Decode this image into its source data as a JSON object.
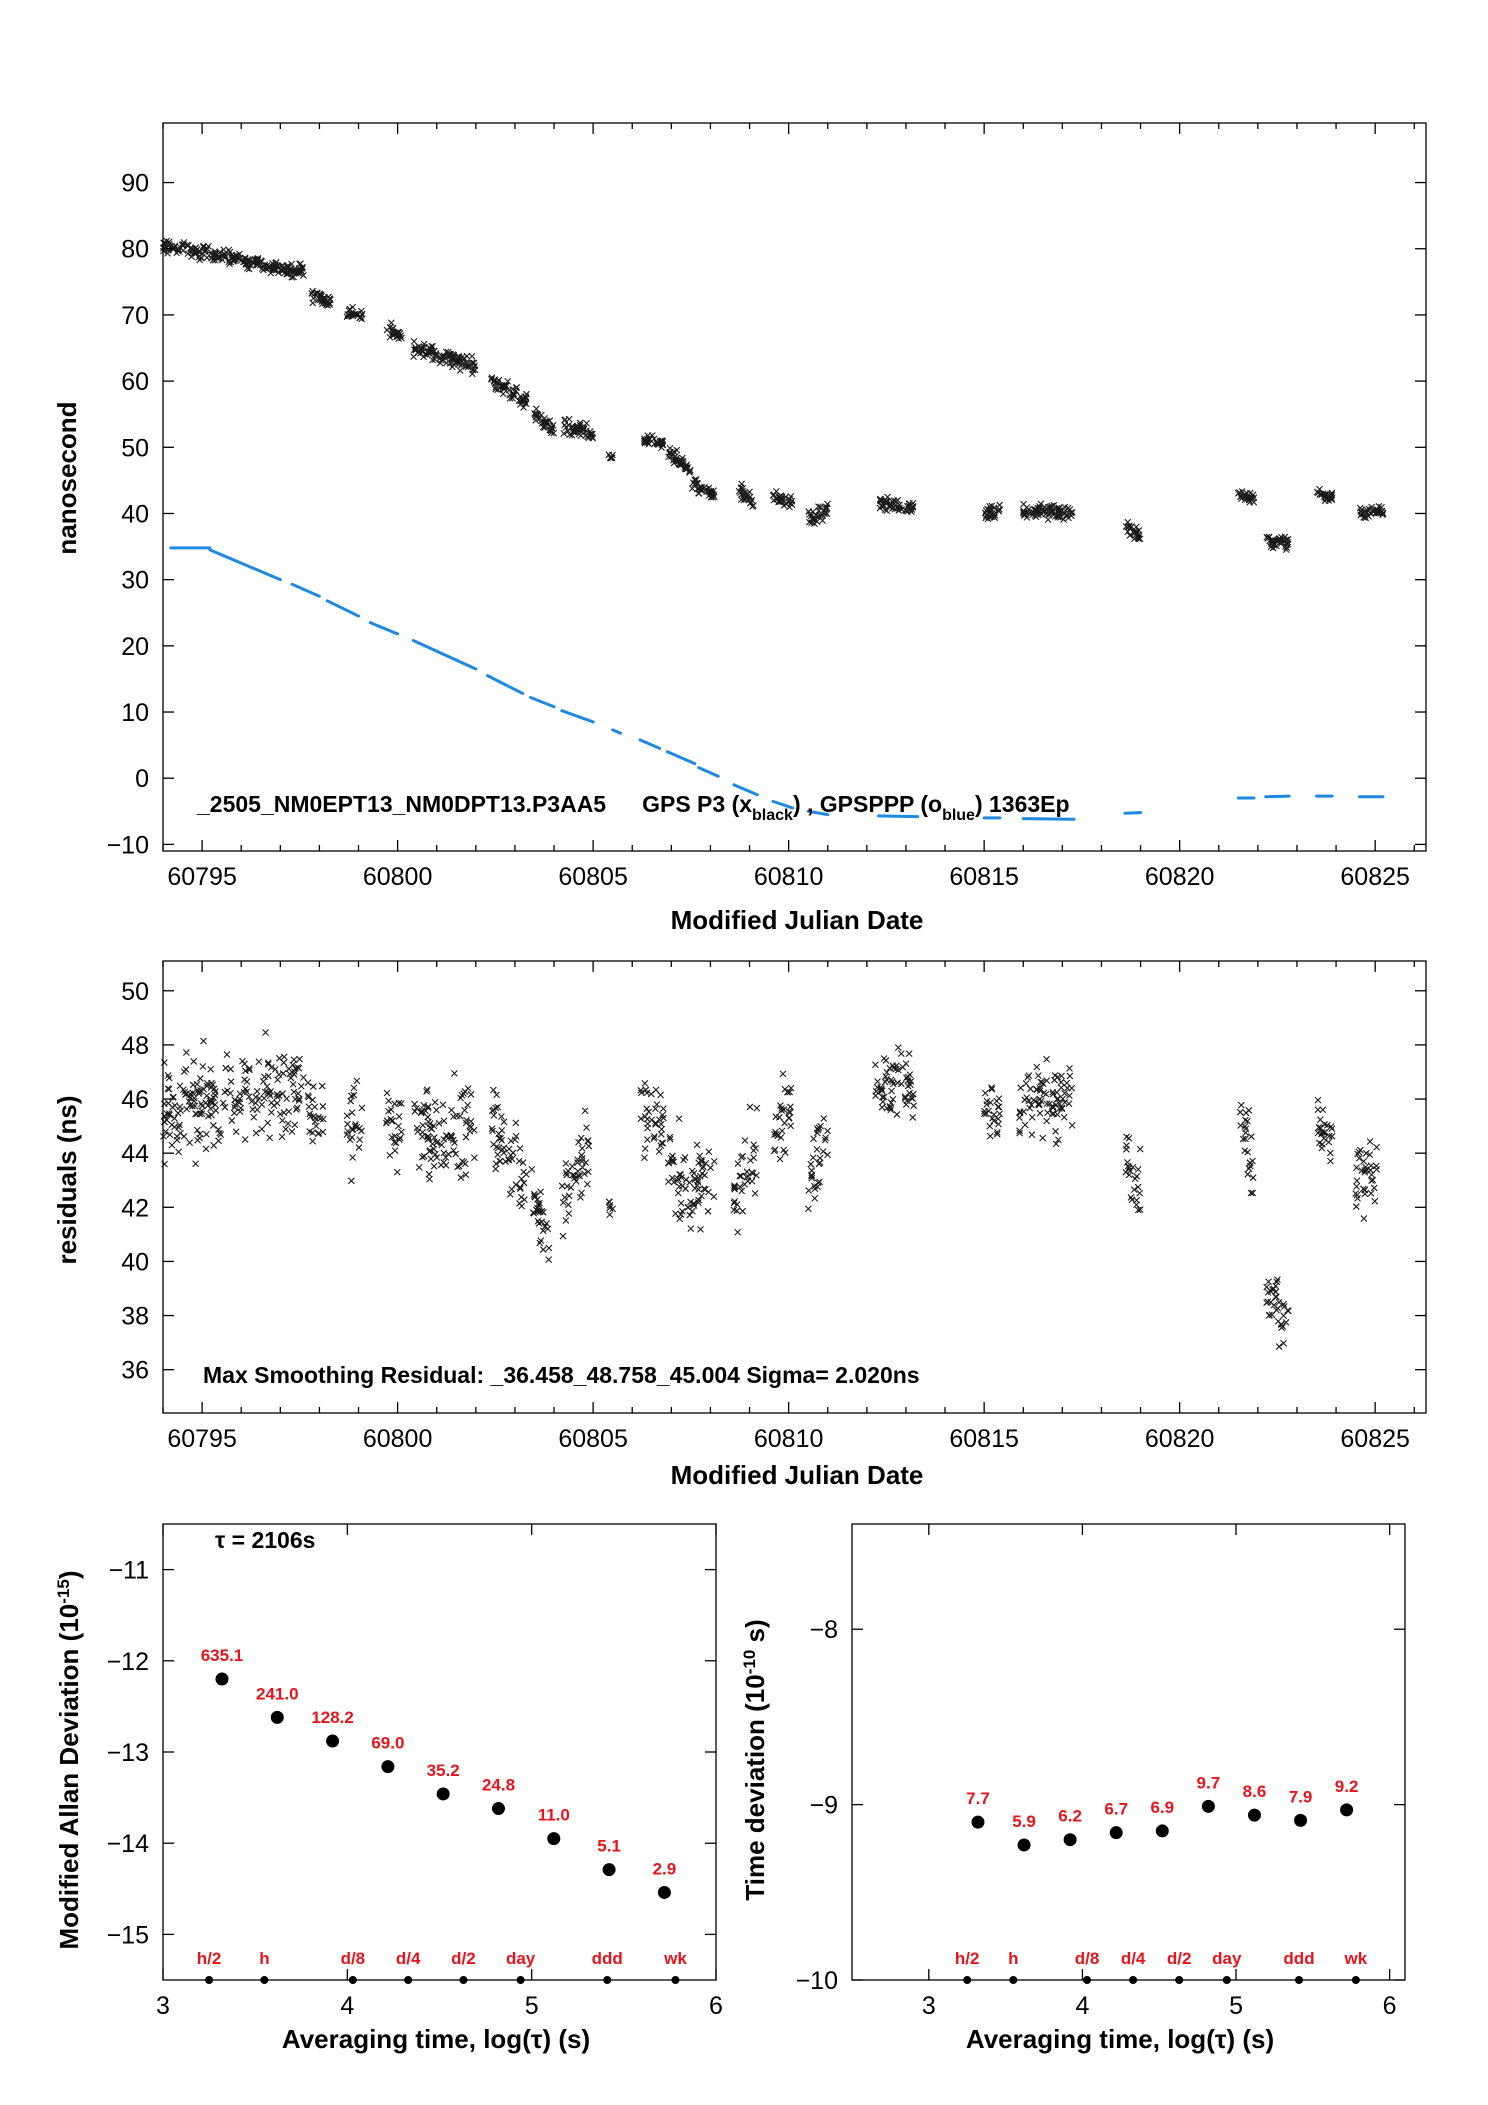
{
  "chart_data": [
    {
      "type": "scatter",
      "xlabel": "Modified Julian Date",
      "ylabel": "nanosecond",
      "xlim": [
        60794,
        60826.3
      ],
      "ylim": [
        -11,
        99
      ],
      "xticks": [
        60795,
        60800,
        60805,
        60810,
        60815,
        60820,
        60825
      ],
      "yticks": [
        -10,
        0,
        10,
        20,
        30,
        40,
        50,
        60,
        70,
        80,
        90
      ],
      "annotation": {
        "prefix": "_2505_NM0EPT13_NM0DPT13.P3AA5",
        "gps": "GPS P3 (x",
        "gps_sub": "black",
        "mid": ") ,  GPSPPP (o",
        "ppp_sub": "blue",
        "suffix": ")  1363Ep"
      },
      "colors": {
        "gps": "#000000",
        "ppp": "#1f88e0"
      },
      "series": [
        {
          "marker": "x",
          "segments": [
            [
              60794.0,
              60797.6,
              80.5,
              76.5,
              1.0
            ],
            [
              60797.8,
              60798.3,
              73.0,
              72.0,
              1.0
            ],
            [
              60798.7,
              60799.1,
              70.5,
              70.0,
              1.0
            ],
            [
              60799.7,
              60800.1,
              68.0,
              66.5,
              1.0
            ],
            [
              60800.4,
              60802.0,
              65.0,
              62.5,
              1.2
            ],
            [
              60802.4,
              60803.3,
              60.0,
              57.0,
              1.2
            ],
            [
              60803.5,
              60804.0,
              55.0,
              52.5,
              1.0
            ],
            [
              60804.2,
              60805.0,
              53.0,
              52.0,
              1.2
            ],
            [
              60805.4,
              60805.5,
              48.5,
              48.5,
              0.5
            ],
            [
              60806.3,
              60806.8,
              51.0,
              50.5,
              0.8
            ],
            [
              60806.9,
              60807.5,
              49.5,
              46.5,
              1.0
            ],
            [
              60807.5,
              60808.1,
              44.5,
              43.0,
              1.0
            ],
            [
              60808.7,
              60809.1,
              43.5,
              42.0,
              1.2
            ],
            [
              60809.6,
              60810.1,
              42.5,
              41.5,
              1.0
            ],
            [
              60810.5,
              60811.0,
              39.0,
              40.5,
              1.0
            ],
            [
              60812.3,
              60813.2,
              41.5,
              41.0,
              1.0
            ],
            [
              60815.0,
              60815.4,
              40.0,
              40.5,
              1.0
            ],
            [
              60816.0,
              60817.3,
              40.5,
              40.0,
              1.0
            ],
            [
              60818.6,
              60819.0,
              38.0,
              37.0,
              1.2
            ],
            [
              60821.5,
              60821.9,
              43.0,
              42.0,
              1.0
            ],
            [
              60822.2,
              60822.8,
              36.0,
              35.5,
              1.2
            ],
            [
              60823.5,
              60823.9,
              43.0,
              42.5,
              0.8
            ],
            [
              60824.6,
              60825.2,
              40.0,
              40.5,
              1.0
            ]
          ]
        },
        {
          "marker": "o",
          "segments": [
            [
              60794.2,
              60795.2,
              34.8,
              34.8
            ],
            [
              60795.2,
              60797.0,
              34.5,
              30.0
            ],
            [
              60797.3,
              60798.0,
              29.3,
              27.5
            ],
            [
              60798.2,
              60799.0,
              26.8,
              24.5
            ],
            [
              60799.3,
              60800.0,
              23.5,
              21.8
            ],
            [
              60800.4,
              60802.0,
              20.8,
              16.5
            ],
            [
              60802.3,
              60803.2,
              15.5,
              12.8
            ],
            [
              60803.4,
              60804.0,
              12.2,
              10.8
            ],
            [
              60804.2,
              60805.0,
              10.2,
              8.5
            ],
            [
              60805.5,
              60805.7,
              7.3,
              6.8
            ],
            [
              60806.2,
              60806.7,
              5.8,
              4.5
            ],
            [
              60806.9,
              60807.6,
              4.0,
              2.2
            ],
            [
              60807.7,
              60808.2,
              1.6,
              0.3
            ],
            [
              60808.6,
              60809.2,
              -1.0,
              -2.5
            ],
            [
              60809.6,
              60810.1,
              -3.5,
              -4.5
            ],
            [
              60810.5,
              60811.0,
              -5.0,
              -5.5
            ],
            [
              60812.3,
              60813.3,
              -5.7,
              -5.8
            ],
            [
              60815.0,
              60815.4,
              -6.0,
              -6.0
            ],
            [
              60816.0,
              60817.3,
              -6.1,
              -6.2
            ],
            [
              60818.6,
              60819.0,
              -5.3,
              -5.2
            ],
            [
              60821.5,
              60821.9,
              -3.0,
              -3.0
            ],
            [
              60822.2,
              60822.8,
              -2.8,
              -2.7
            ],
            [
              60823.5,
              60823.9,
              -2.7,
              -2.7
            ],
            [
              60824.6,
              60825.2,
              -2.8,
              -2.8
            ]
          ]
        }
      ]
    },
    {
      "type": "scatter",
      "xlabel": "Modified Julian Date",
      "ylabel": "residuals (ns)",
      "xlim": [
        60794,
        60826.3
      ],
      "ylim": [
        34.4,
        51.1
      ],
      "xticks": [
        60795,
        60800,
        60805,
        60810,
        60815,
        60820,
        60825
      ],
      "yticks": [
        36,
        38,
        40,
        42,
        44,
        46,
        48,
        50
      ],
      "annotation": "Max Smoothing Residual: _36.458_48.758_45.004  Sigma= 2.020ns",
      "series": [
        {
          "marker": "x",
          "segments": [
            [
              60794.0,
              60797.6,
              45.5,
              46.5,
              1.6
            ],
            [
              60797.7,
              60798.1,
              45.5,
              45.0,
              1.6
            ],
            [
              60798.7,
              60799.1,
              45.0,
              45.0,
              1.6
            ],
            [
              60799.7,
              60800.1,
              45.5,
              44.5,
              1.6
            ],
            [
              60800.4,
              60802.0,
              45.0,
              45.0,
              1.6
            ],
            [
              60802.4,
              60803.3,
              45.0,
              43.0,
              1.5
            ],
            [
              60803.4,
              60803.9,
              42.5,
              40.5,
              1.5
            ],
            [
              60804.2,
              60804.9,
              42.0,
              44.0,
              1.5
            ],
            [
              60805.4,
              60805.5,
              42.0,
              42.0,
              0.3
            ],
            [
              60806.2,
              60806.8,
              45.5,
              45.0,
              1.2
            ],
            [
              60806.9,
              60807.5,
              44.0,
              42.0,
              1.6
            ],
            [
              60807.5,
              60808.1,
              42.5,
              43.0,
              1.5
            ],
            [
              60808.6,
              60809.2,
              42.0,
              44.5,
              1.4
            ],
            [
              60809.6,
              60810.1,
              45.0,
              46.0,
              1.4
            ],
            [
              60810.5,
              60811.0,
              43.0,
              44.5,
              1.4
            ],
            [
              60812.2,
              60813.2,
              46.5,
              46.5,
              1.4
            ],
            [
              60815.0,
              60815.4,
              45.5,
              45.5,
              1.1
            ],
            [
              60815.9,
              60817.3,
              46.0,
              46.0,
              1.3
            ],
            [
              60818.6,
              60819.0,
              44.0,
              42.5,
              1.4
            ],
            [
              60821.5,
              60821.9,
              45.5,
              43.5,
              1.4
            ],
            [
              60822.2,
              60822.8,
              38.5,
              38.0,
              1.2
            ],
            [
              60823.5,
              60823.9,
              45.5,
              44.5,
              1.1
            ],
            [
              60824.5,
              60825.1,
              43.0,
              43.5,
              1.2
            ]
          ]
        }
      ]
    },
    {
      "type": "scatter",
      "title": "τ = 2106s",
      "xlabel": "Averaging time, log(τ) (s)",
      "ylabel": "Modified Allan Deviation (10",
      "ylabel_exp": "-15",
      "ylabel_end": ")",
      "xlim": [
        3,
        6
      ],
      "ylim": [
        -15.5,
        -10.5
      ],
      "xticks": [
        3,
        4,
        5,
        6
      ],
      "yticks": [
        -15,
        -14,
        -13,
        -12,
        -11
      ],
      "x": [
        3.32,
        3.62,
        3.92,
        4.22,
        4.52,
        4.82,
        5.12,
        5.42,
        5.72
      ],
      "y": [
        -12.2,
        -12.62,
        -12.88,
        -13.16,
        -13.46,
        -13.62,
        -13.95,
        -14.29,
        -14.54
      ],
      "point_labels": [
        "635.1",
        "241.0",
        "128.2",
        "69.0",
        "35.2",
        "24.8",
        "11.0",
        "5.1",
        "2.9"
      ],
      "markers": {
        "x": [
          3.25,
          3.55,
          4.03,
          4.33,
          4.63,
          4.94,
          5.41,
          5.78
        ],
        "labels": [
          "h/2",
          "h",
          "d/8",
          "d/4",
          "d/2",
          "day",
          "ddd",
          "wk"
        ]
      },
      "colors": {
        "labels": "#e8141c"
      }
    },
    {
      "type": "scatter",
      "xlabel": "Averaging time, log(τ) (s)",
      "ylabel": "Time deviation (10",
      "ylabel_exp": "-10",
      "ylabel_end": " s)",
      "xlim": [
        2.5,
        6.1
      ],
      "ylim": [
        -10,
        -7.4
      ],
      "xticks": [
        3,
        4,
        5,
        6
      ],
      "yticks": [
        -10,
        -9,
        -8
      ],
      "x": [
        3.32,
        3.62,
        3.92,
        4.22,
        4.52,
        4.82,
        5.12,
        5.42,
        5.72
      ],
      "y": [
        -9.1,
        -9.23,
        -9.2,
        -9.16,
        -9.15,
        -9.01,
        -9.06,
        -9.09,
        -9.03
      ],
      "point_labels": [
        "7.7",
        "5.9",
        "6.2",
        "6.7",
        "6.9",
        "9.7",
        "8.6",
        "7.9",
        "9.2"
      ],
      "markers": {
        "x": [
          3.25,
          3.55,
          4.03,
          4.33,
          4.63,
          4.94,
          5.41,
          5.78
        ],
        "labels": [
          "h/2",
          "h",
          "d/8",
          "d/4",
          "d/2",
          "day",
          "ddd",
          "wk"
        ]
      },
      "colors": {
        "labels": "#e8141c"
      }
    }
  ]
}
